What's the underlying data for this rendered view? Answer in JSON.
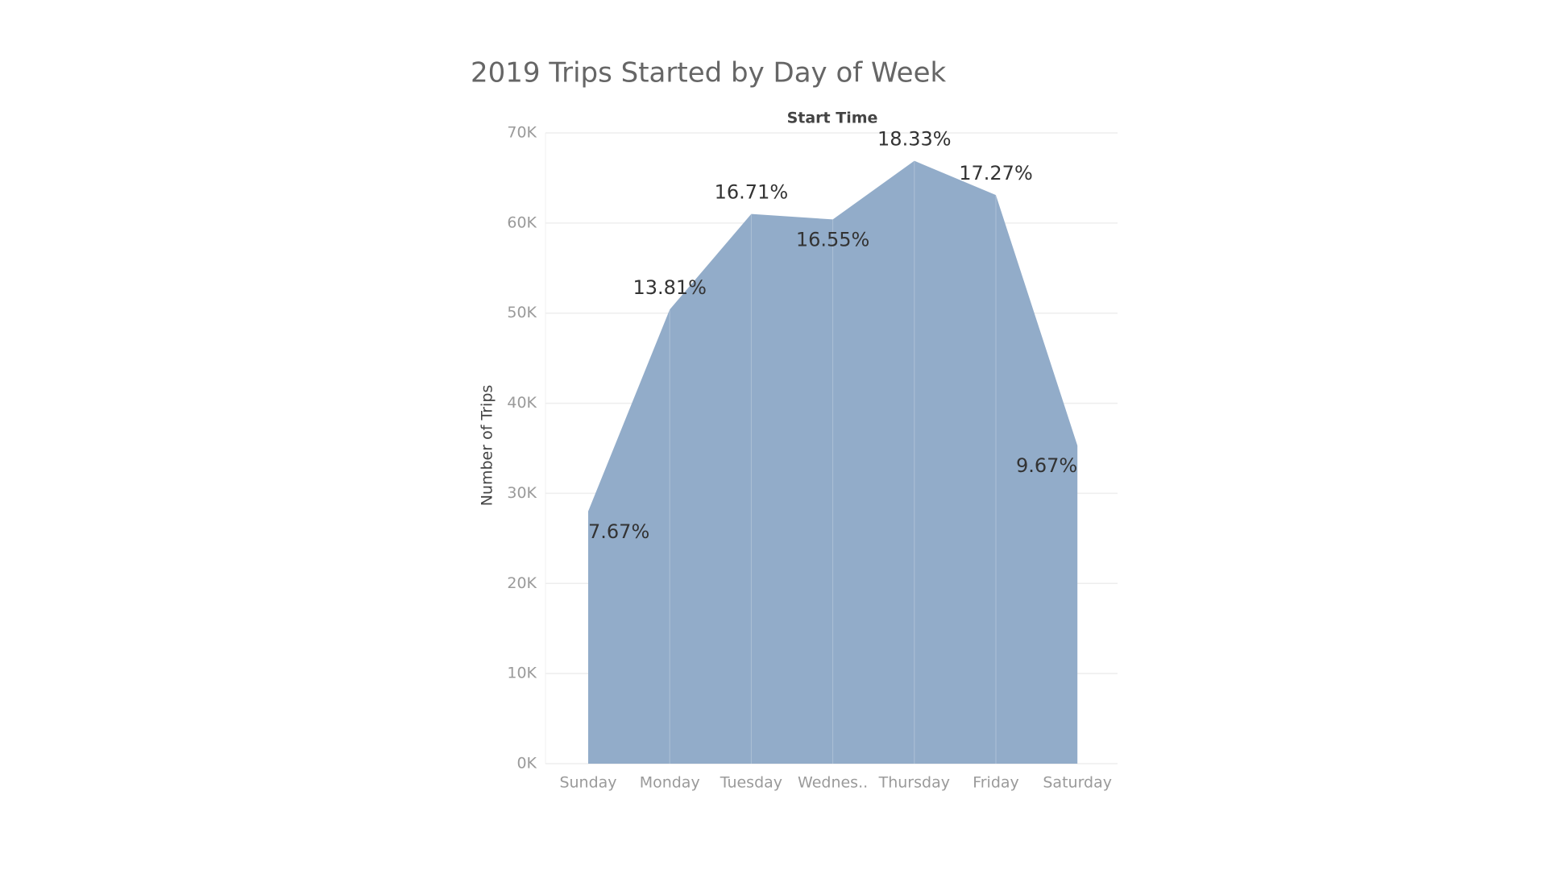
{
  "chart_data": {
    "type": "area",
    "title": "2019 Trips Started by Day of Week",
    "x_axis_title": "Start Time",
    "y_axis_title": "Number of Trips",
    "categories": [
      "Sunday",
      "Monday",
      "Tuesday",
      "Wednes..",
      "Thursday",
      "Friday",
      "Saturday"
    ],
    "values": [
      28000,
      50400,
      61000,
      60400,
      66900,
      63100,
      35300
    ],
    "value_labels": [
      "7.67%",
      "13.81%",
      "16.71%",
      "16.55%",
      "18.33%",
      "17.27%",
      "9.67%"
    ],
    "color": "#92acc9",
    "ylim": [
      0,
      70000
    ],
    "yticks": [
      {
        "value": 0,
        "label": "0K"
      },
      {
        "value": 10000,
        "label": "10K"
      },
      {
        "value": 20000,
        "label": "20K"
      },
      {
        "value": 30000,
        "label": "30K"
      },
      {
        "value": 40000,
        "label": "40K"
      },
      {
        "value": 50000,
        "label": "50K"
      },
      {
        "value": 60000,
        "label": "60K"
      },
      {
        "value": 70000,
        "label": "70K"
      }
    ],
    "grid": true
  }
}
